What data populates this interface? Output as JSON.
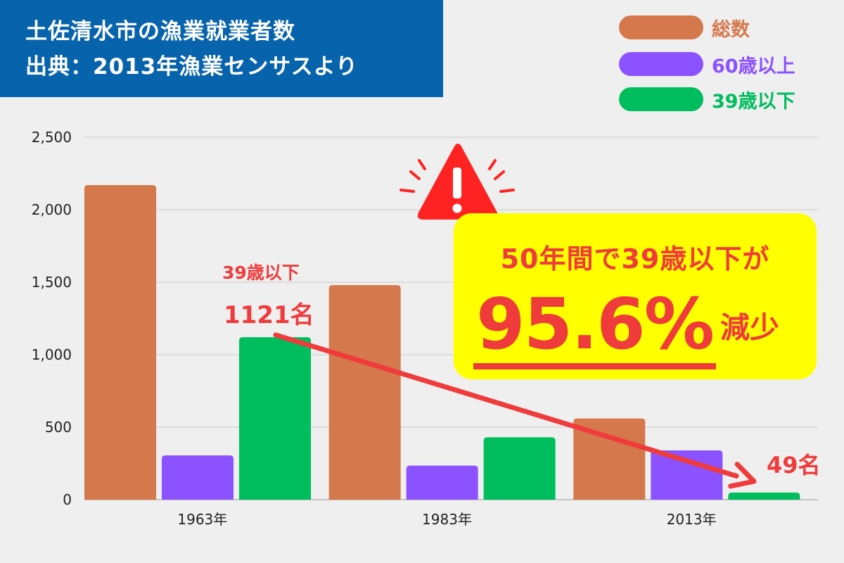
{
  "title": {
    "line1": "土佐清水市の漁業就業者数",
    "line2": "出典：2013年漁業センサスより"
  },
  "colors": {
    "total": "#d5784c",
    "senior": "#8c52ff",
    "young": "#00bd5e",
    "accent": "#ef3b3b",
    "highlight": "#ffff00",
    "title_bg": "#0863ad"
  },
  "chart_data": {
    "type": "bar",
    "categories": [
      "1963年",
      "1983年",
      "2013年"
    ],
    "series": [
      {
        "name": "総数",
        "values": [
          2170,
          1480,
          560
        ]
      },
      {
        "name": "60歳以上",
        "values": [
          305,
          235,
          340
        ]
      },
      {
        "name": "39歳以下",
        "values": [
          1121,
          430,
          49
        ]
      }
    ],
    "ylim": [
      0,
      2500
    ],
    "yticks": [
      0,
      500,
      1000,
      1500,
      2000,
      2500
    ],
    "ytick_labels": [
      "0",
      "500",
      "1,000",
      "1,500",
      "2,000",
      "2,500"
    ],
    "grid": true,
    "legend_position": "top-right",
    "annotations": {
      "start_label_line1": "39歳以下",
      "start_label_line2": "1121名",
      "end_label": "49名",
      "trend_arrow": "red-arrow",
      "warning": "warning-triangle-icon"
    }
  },
  "callout": {
    "line1": "50年間で39歳以下が",
    "percent": "95.6%",
    "suffix": "減少"
  }
}
